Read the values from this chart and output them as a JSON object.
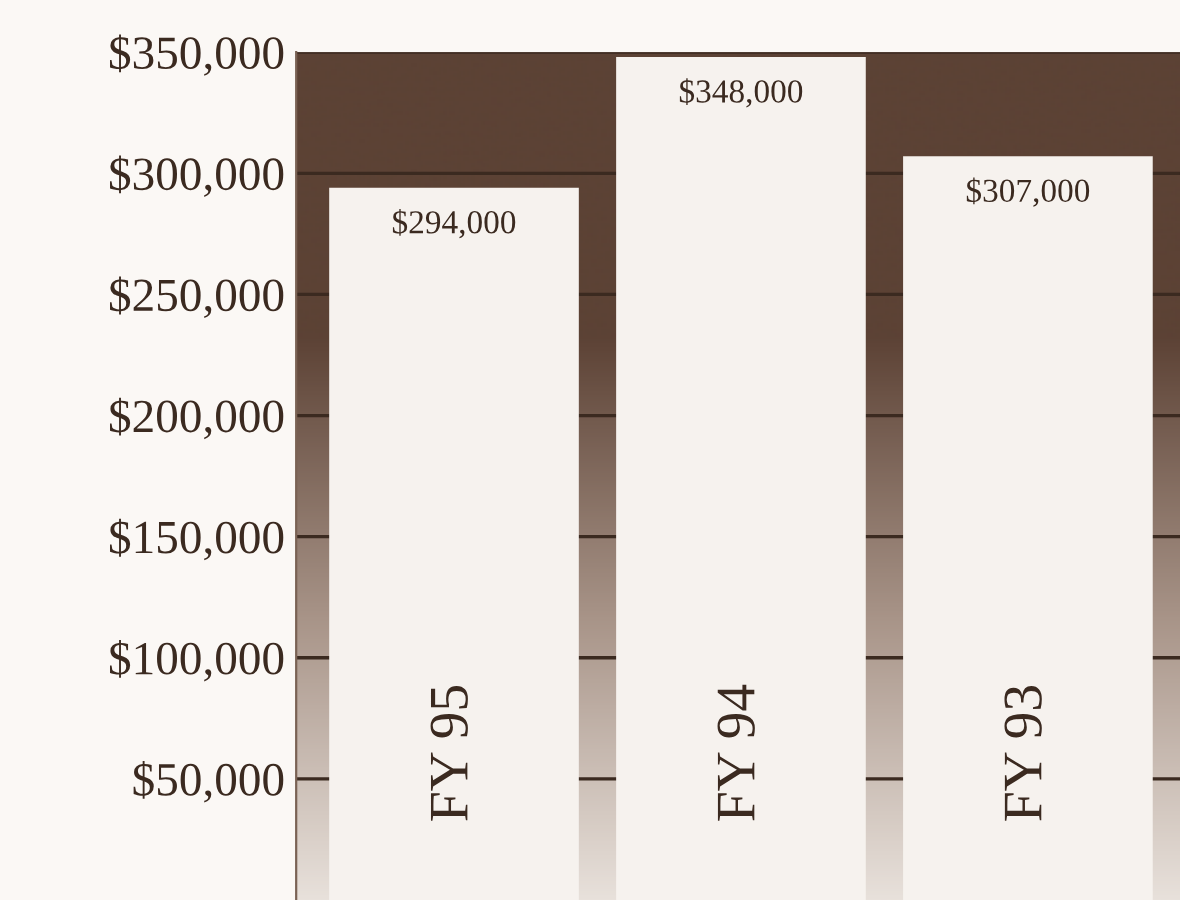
{
  "chart_data": {
    "type": "bar",
    "categories": [
      "FY 95",
      "FY 94",
      "FY 93"
    ],
    "values": [
      294000,
      348000,
      307000
    ],
    "value_labels": [
      "$294,000",
      "$348,000",
      "$307,000"
    ],
    "color": "#f6f2ee",
    "ylim": [
      0,
      350000
    ],
    "yticks": [
      {
        "value": 50000,
        "label": "$50,000"
      },
      {
        "value": 100000,
        "label": "$100,000"
      },
      {
        "value": 150000,
        "label": "$150,000"
      },
      {
        "value": 200000,
        "label": "$200,000"
      },
      {
        "value": 250000,
        "label": "$250,000"
      },
      {
        "value": 300000,
        "label": "$300,000"
      },
      {
        "value": 350000,
        "label": "$350,000"
      }
    ],
    "grid": "y"
  }
}
